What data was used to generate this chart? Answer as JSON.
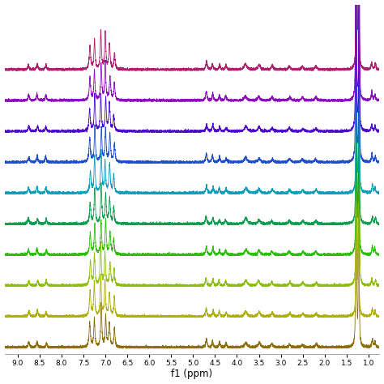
{
  "xlabel": "f1 (ppm)",
  "xlim": [
    9.3,
    0.75
  ],
  "x_ticks": [
    9.0,
    8.5,
    8.0,
    7.5,
    7.0,
    6.5,
    6.0,
    5.5,
    5.0,
    4.5,
    4.0,
    3.5,
    3.0,
    2.5,
    2.0,
    1.5,
    1.0
  ],
  "colors": [
    "#aa1166",
    "#8800bb",
    "#4400cc",
    "#1144cc",
    "#0099bb",
    "#009944",
    "#22bb00",
    "#88bb00",
    "#aaaa00",
    "#886600"
  ],
  "n_spectra": 10,
  "background_color": "#ffffff",
  "figsize": [
    4.74,
    4.74
  ],
  "dpi": 100
}
